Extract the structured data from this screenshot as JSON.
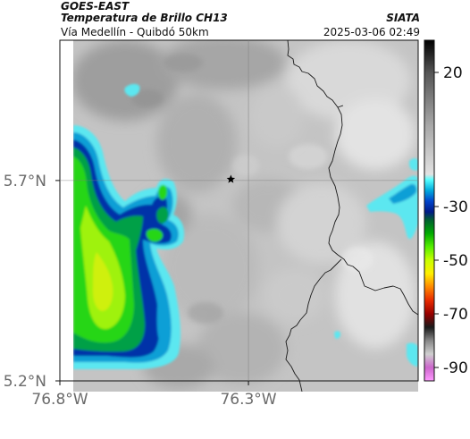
{
  "header": {
    "satellite": "GOES-EAST",
    "product": "Temperatura de Brillo CH13",
    "region": "Vía Medellín - Quibdó 50km",
    "brand": "SIATA",
    "timestamp": "2025-03-06 02:49"
  },
  "map": {
    "lon_range": [
      -76.8,
      -75.85
    ],
    "lat_range": [
      5.2,
      6.05
    ],
    "lon_ticks": [
      {
        "value": -76.8,
        "label": "76.8°W"
      },
      {
        "value": -76.3,
        "label": "76.3°W"
      }
    ],
    "lat_ticks": [
      {
        "value": 5.7,
        "label": "5.7°N"
      },
      {
        "value": 5.2,
        "label": "5.2°N"
      }
    ],
    "marker": {
      "lon": -76.3466,
      "lat": 5.703,
      "symbol": "star"
    }
  },
  "colorbar": {
    "range": [
      -95,
      32
    ],
    "ticks": [
      {
        "value": 20,
        "label": "20"
      },
      {
        "value": -30,
        "label": "-30"
      },
      {
        "value": -50,
        "label": "-50"
      },
      {
        "value": -70,
        "label": "-70"
      },
      {
        "value": -90,
        "label": "-90"
      }
    ],
    "stops": [
      {
        "t": -95,
        "color": "#ff99ff"
      },
      {
        "t": -90,
        "color": "#cc66cc"
      },
      {
        "t": -85,
        "color": "#cfcfcf"
      },
      {
        "t": -80,
        "color": "#888888"
      },
      {
        "t": -75,
        "color": "#1a1a1a"
      },
      {
        "t": -70,
        "color": "#990000"
      },
      {
        "t": -65,
        "color": "#e82a00"
      },
      {
        "t": -60,
        "color": "#ff8800"
      },
      {
        "t": -55,
        "color": "#ffee00"
      },
      {
        "t": -50,
        "color": "#c8ff00"
      },
      {
        "t": -45,
        "color": "#55ee00"
      },
      {
        "t": -40,
        "color": "#00aa00"
      },
      {
        "t": -35,
        "color": "#006030"
      },
      {
        "t": -32,
        "color": "#001a88"
      },
      {
        "t": -28,
        "color": "#0044cc"
      },
      {
        "t": -24,
        "color": "#00aadd"
      },
      {
        "t": -20,
        "color": "#55ffff"
      },
      {
        "t": -18,
        "color": "#e2e2e2"
      },
      {
        "t": 0,
        "color": "#a8a8a8"
      },
      {
        "t": 20,
        "color": "#555555"
      },
      {
        "t": 32,
        "color": "#000000"
      }
    ]
  }
}
